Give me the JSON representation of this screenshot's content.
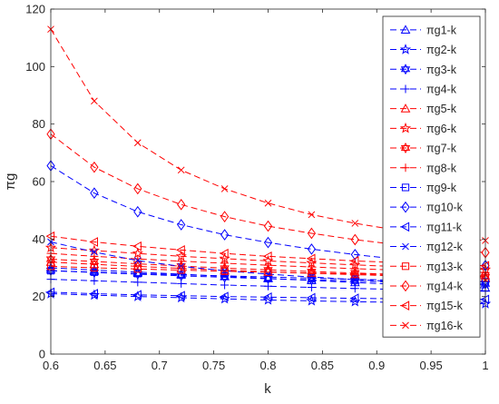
{
  "chart_data": {
    "type": "line",
    "xlabel": "k",
    "ylabel": "πg",
    "xlim": [
      0.6,
      1.0
    ],
    "ylim": [
      0,
      120
    ],
    "xticks": [
      "0.6",
      "0.65",
      "0.7",
      "0.75",
      "0.8",
      "0.85",
      "0.9",
      "0.95",
      "1"
    ],
    "yticks": [
      "0",
      "20",
      "40",
      "60",
      "80",
      "100",
      "120"
    ],
    "legend_position": "top-right",
    "grid": false,
    "line_style": "dashed",
    "x": [
      0.6,
      0.64,
      0.68,
      0.72,
      0.76,
      0.8,
      0.84,
      0.88,
      0.92,
      0.96,
      1.0
    ],
    "series": [
      {
        "name": "πg1-k",
        "color": "#0000ff",
        "marker": "triangle-up",
        "values": [
          30.0,
          29.2,
          28.5,
          27.8,
          27.0,
          26.3,
          25.6,
          24.9,
          24.2,
          23.6,
          23.0
        ]
      },
      {
        "name": "πg2-k",
        "color": "#0000ff",
        "marker": "star",
        "values": [
          21.0,
          20.5,
          20.0,
          19.6,
          19.2,
          18.8,
          18.5,
          18.2,
          18.0,
          17.8,
          17.5
        ]
      },
      {
        "name": "πg3-k",
        "color": "#0000ff",
        "marker": "hexagram",
        "values": [
          29.0,
          28.4,
          27.8,
          27.2,
          26.7,
          26.2,
          25.8,
          25.4,
          25.0,
          24.7,
          24.4
        ]
      },
      {
        "name": "πg4-k",
        "color": "#0000ff",
        "marker": "plus",
        "values": [
          26.0,
          25.5,
          25.0,
          24.5,
          24.0,
          23.6,
          23.2,
          22.8,
          22.5,
          22.2,
          22.0
        ]
      },
      {
        "name": "πg5-k",
        "color": "#ff0000",
        "marker": "triangle-up",
        "values": [
          32.0,
          31.2,
          30.5,
          29.8,
          29.2,
          28.6,
          28.1,
          27.6,
          27.2,
          26.8,
          26.5
        ]
      },
      {
        "name": "πg6-k",
        "color": "#ff0000",
        "marker": "star",
        "values": [
          37.0,
          36.0,
          35.0,
          34.0,
          33.2,
          32.4,
          31.7,
          31.0,
          30.4,
          29.9,
          29.4
        ]
      },
      {
        "name": "πg7-k",
        "color": "#ff0000",
        "marker": "hexagram",
        "values": [
          33.0,
          32.2,
          31.4,
          30.6,
          29.9,
          29.3,
          28.7,
          28.2,
          27.7,
          27.3,
          26.9
        ]
      },
      {
        "name": "πg8-k",
        "color": "#ff0000",
        "marker": "plus",
        "values": [
          35.0,
          34.0,
          33.1,
          32.3,
          31.6,
          30.9,
          30.3,
          29.7,
          29.2,
          28.8,
          28.4
        ]
      },
      {
        "name": "πg9-k",
        "color": "#0000ff",
        "marker": "square",
        "values": [
          29.0,
          28.5,
          28.0,
          27.6,
          27.2,
          26.8,
          26.4,
          26.0,
          25.7,
          25.4,
          25.1
        ]
      },
      {
        "name": "πg10-k",
        "color": "#0000ff",
        "marker": "diamond",
        "values": [
          65.5,
          56.0,
          49.5,
          45.0,
          41.5,
          38.8,
          36.5,
          34.6,
          33.0,
          31.8,
          30.8
        ]
      },
      {
        "name": "πg11-k",
        "color": "#0000ff",
        "marker": "triangle-left",
        "values": [
          21.5,
          21.0,
          20.6,
          20.3,
          20.0,
          19.8,
          19.6,
          19.4,
          19.2,
          19.1,
          19.0
        ]
      },
      {
        "name": "πg12-k",
        "color": "#0000ff",
        "marker": "x",
        "values": [
          39.0,
          35.5,
          32.5,
          30.5,
          29.0,
          27.8,
          26.8,
          25.9,
          25.2,
          24.6,
          24.0
        ]
      },
      {
        "name": "πg13-k",
        "color": "#ff0000",
        "marker": "square",
        "values": [
          30.5,
          30.0,
          29.6,
          29.2,
          28.8,
          28.5,
          28.2,
          27.9,
          27.6,
          27.4,
          27.2
        ]
      },
      {
        "name": "πg14-k",
        "color": "#ff0000",
        "marker": "diamond",
        "values": [
          76.5,
          65.0,
          57.5,
          52.0,
          47.8,
          44.5,
          42.0,
          39.8,
          38.0,
          36.5,
          35.3
        ]
      },
      {
        "name": "πg15-k",
        "color": "#ff0000",
        "marker": "triangle-left",
        "values": [
          41.0,
          39.0,
          37.5,
          36.2,
          35.0,
          34.0,
          33.2,
          32.4,
          31.8,
          31.2,
          30.7
        ]
      },
      {
        "name": "πg16-k",
        "color": "#ff0000",
        "marker": "x",
        "values": [
          113.0,
          88.0,
          73.5,
          64.0,
          57.5,
          52.5,
          48.5,
          45.5,
          43.0,
          41.0,
          39.5
        ]
      }
    ]
  }
}
